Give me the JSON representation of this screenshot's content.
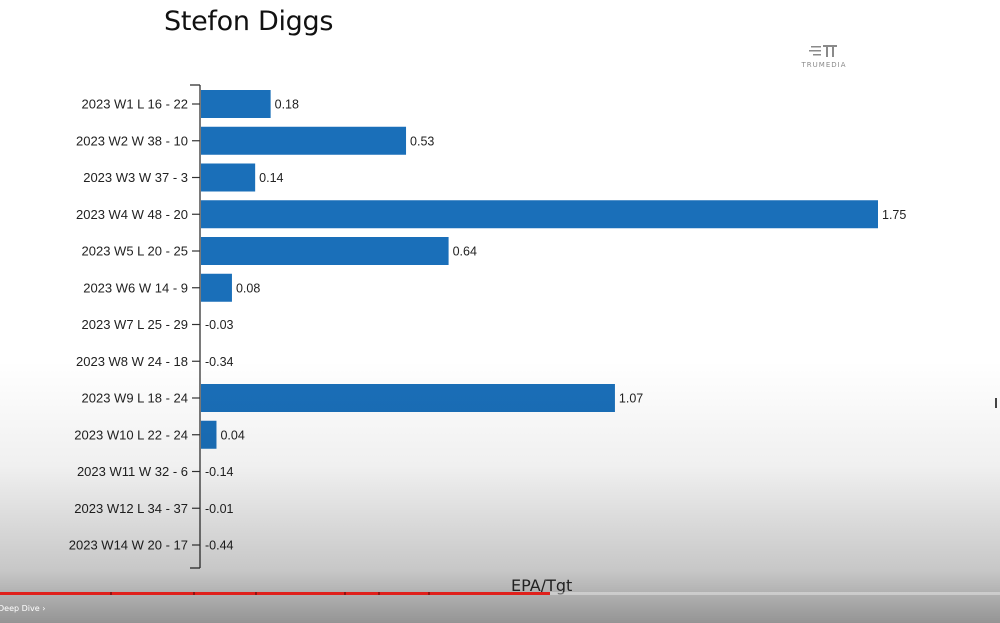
{
  "chart_data": {
    "type": "bar",
    "orientation": "horizontal",
    "title": "Stefon Diggs",
    "xlabel": "EPA/Tgt",
    "ylabel": "",
    "categories": [
      "2023 W1 L 16 - 22",
      "2023 W2 W 38 - 10",
      "2023 W3 W 37 - 3",
      "2023 W4 W 48 - 20",
      "2023 W5 L 20 - 25",
      "2023 W6 W 14 - 9",
      "2023 W7 L 25 - 29",
      "2023 W8 W 24 - 18",
      "2023 W9 L 18 - 24",
      "2023 W10 L 22 - 24",
      "2023 W11 W 32 - 6",
      "2023 W12 L 34 - 37",
      "2023 W14 W 20 - 17"
    ],
    "values": [
      0.18,
      0.53,
      0.14,
      1.75,
      0.64,
      0.08,
      -0.03,
      -0.34,
      1.07,
      0.04,
      -0.14,
      -0.01,
      -0.44
    ],
    "value_labels": [
      "0.18",
      "0.53",
      "0.14",
      "1.75",
      "0.64",
      "0.08",
      "-0.03",
      "-0.34",
      "1.07",
      "0.04",
      "-0.14",
      "-0.01",
      "-0.44"
    ],
    "xlim": [
      0,
      1.75
    ],
    "negative_values_drawn": false,
    "grid": false,
    "bar_color": "#1a6fb9"
  },
  "branding": {
    "logo_text": "TRUMEDIA"
  },
  "player": {
    "chapter_label": "Deep Dive",
    "chapter_chevron": "›",
    "progress_fraction": 0.55,
    "accent": "#e0201b"
  }
}
